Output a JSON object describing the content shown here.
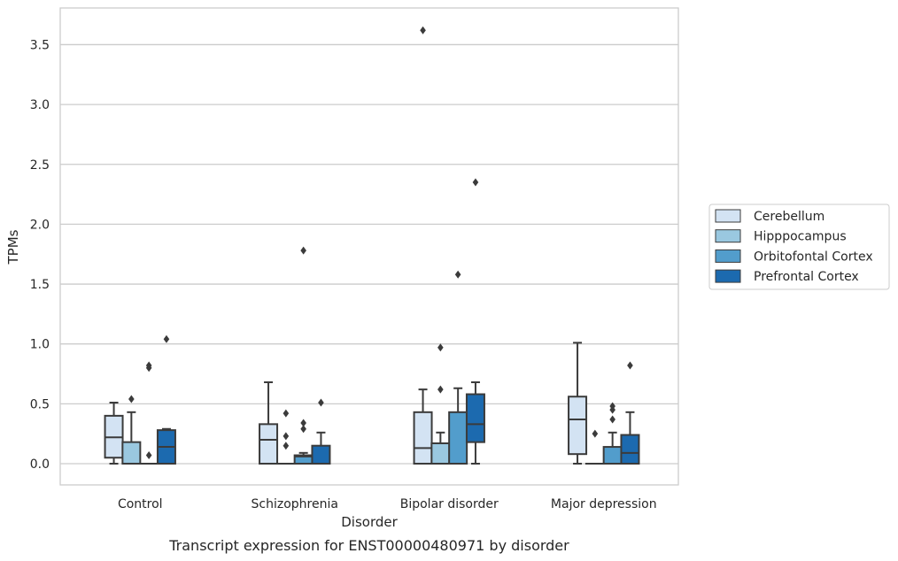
{
  "chart_data": {
    "type": "box",
    "title": "",
    "caption": "Transcript expression for ENST00000480971 by disorder",
    "xlabel": "Disorder",
    "ylabel": "TPMs",
    "ylim": [
      -0.18,
      3.8
    ],
    "yticks": [
      "0.0",
      "0.5",
      "1.0",
      "1.5",
      "2.0",
      "2.5",
      "3.0",
      "3.5"
    ],
    "grid": "horizontal",
    "legend_position": "right",
    "categories": [
      "Control",
      "Schizophrenia",
      "Bipolar disorder",
      "Major depression"
    ],
    "series": [
      {
        "name": "Cerebellum",
        "color": "#d3e3f3",
        "boxes": [
          {
            "q1": 0.05,
            "median": 0.22,
            "q3": 0.4,
            "whisker_low": 0.0,
            "whisker_high": 0.51,
            "outliers": []
          },
          {
            "q1": 0.0,
            "median": 0.2,
            "q3": 0.33,
            "whisker_low": 0.0,
            "whisker_high": 0.68,
            "outliers": []
          },
          {
            "q1": 0.0,
            "median": 0.13,
            "q3": 0.43,
            "whisker_low": 0.0,
            "whisker_high": 0.62,
            "outliers": [
              3.62
            ]
          },
          {
            "q1": 0.08,
            "median": 0.37,
            "q3": 0.56,
            "whisker_low": 0.0,
            "whisker_high": 1.01,
            "outliers": []
          }
        ]
      },
      {
        "name": "Hipppocampus",
        "color": "#9ac8e0",
        "boxes": [
          {
            "q1": 0.0,
            "median": 0.0,
            "q3": 0.18,
            "whisker_low": 0.0,
            "whisker_high": 0.43,
            "outliers": [
              0.54
            ]
          },
          {
            "q1": 0.0,
            "median": 0.0,
            "q3": 0.0,
            "whisker_low": 0.0,
            "whisker_high": 0.0,
            "outliers": [
              0.42,
              0.23,
              0.15
            ]
          },
          {
            "q1": 0.0,
            "median": 0.0,
            "q3": 0.17,
            "whisker_low": 0.0,
            "whisker_high": 0.26,
            "outliers": [
              0.97,
              0.62
            ]
          },
          {
            "q1": 0.0,
            "median": 0.0,
            "q3": 0.0,
            "whisker_low": 0.0,
            "whisker_high": 0.0,
            "outliers": [
              0.25
            ]
          }
        ]
      },
      {
        "name": "Orbitofontal Cortex",
        "color": "#529dcc",
        "boxes": [
          {
            "q1": 0.0,
            "median": 0.0,
            "q3": 0.0,
            "whisker_low": 0.0,
            "whisker_high": 0.0,
            "outliers": [
              0.82,
              0.8,
              0.07
            ]
          },
          {
            "q1": 0.0,
            "median": 0.06,
            "q3": 0.07,
            "whisker_low": 0.0,
            "whisker_high": 0.09,
            "outliers": [
              1.78,
              0.34,
              0.29
            ]
          },
          {
            "q1": 0.0,
            "median": 0.0,
            "q3": 0.43,
            "whisker_low": 0.0,
            "whisker_high": 0.63,
            "outliers": [
              1.58
            ]
          },
          {
            "q1": 0.0,
            "median": 0.0,
            "q3": 0.14,
            "whisker_low": 0.0,
            "whisker_high": 0.26,
            "outliers": [
              0.48,
              0.45,
              0.37
            ]
          }
        ]
      },
      {
        "name": "Prefrontal Cortex",
        "color": "#1c6aaf",
        "boxes": [
          {
            "q1": 0.0,
            "median": 0.14,
            "q3": 0.28,
            "whisker_low": 0.0,
            "whisker_high": 0.29,
            "outliers": [
              1.04
            ]
          },
          {
            "q1": 0.0,
            "median": 0.0,
            "q3": 0.15,
            "whisker_low": 0.0,
            "whisker_high": 0.26,
            "outliers": [
              0.51
            ]
          },
          {
            "q1": 0.18,
            "median": 0.33,
            "q3": 0.58,
            "whisker_low": 0.0,
            "whisker_high": 0.68,
            "outliers": [
              2.35
            ]
          },
          {
            "q1": 0.0,
            "median": 0.09,
            "q3": 0.24,
            "whisker_low": 0.0,
            "whisker_high": 0.43,
            "outliers": [
              0.82
            ]
          }
        ]
      }
    ]
  }
}
